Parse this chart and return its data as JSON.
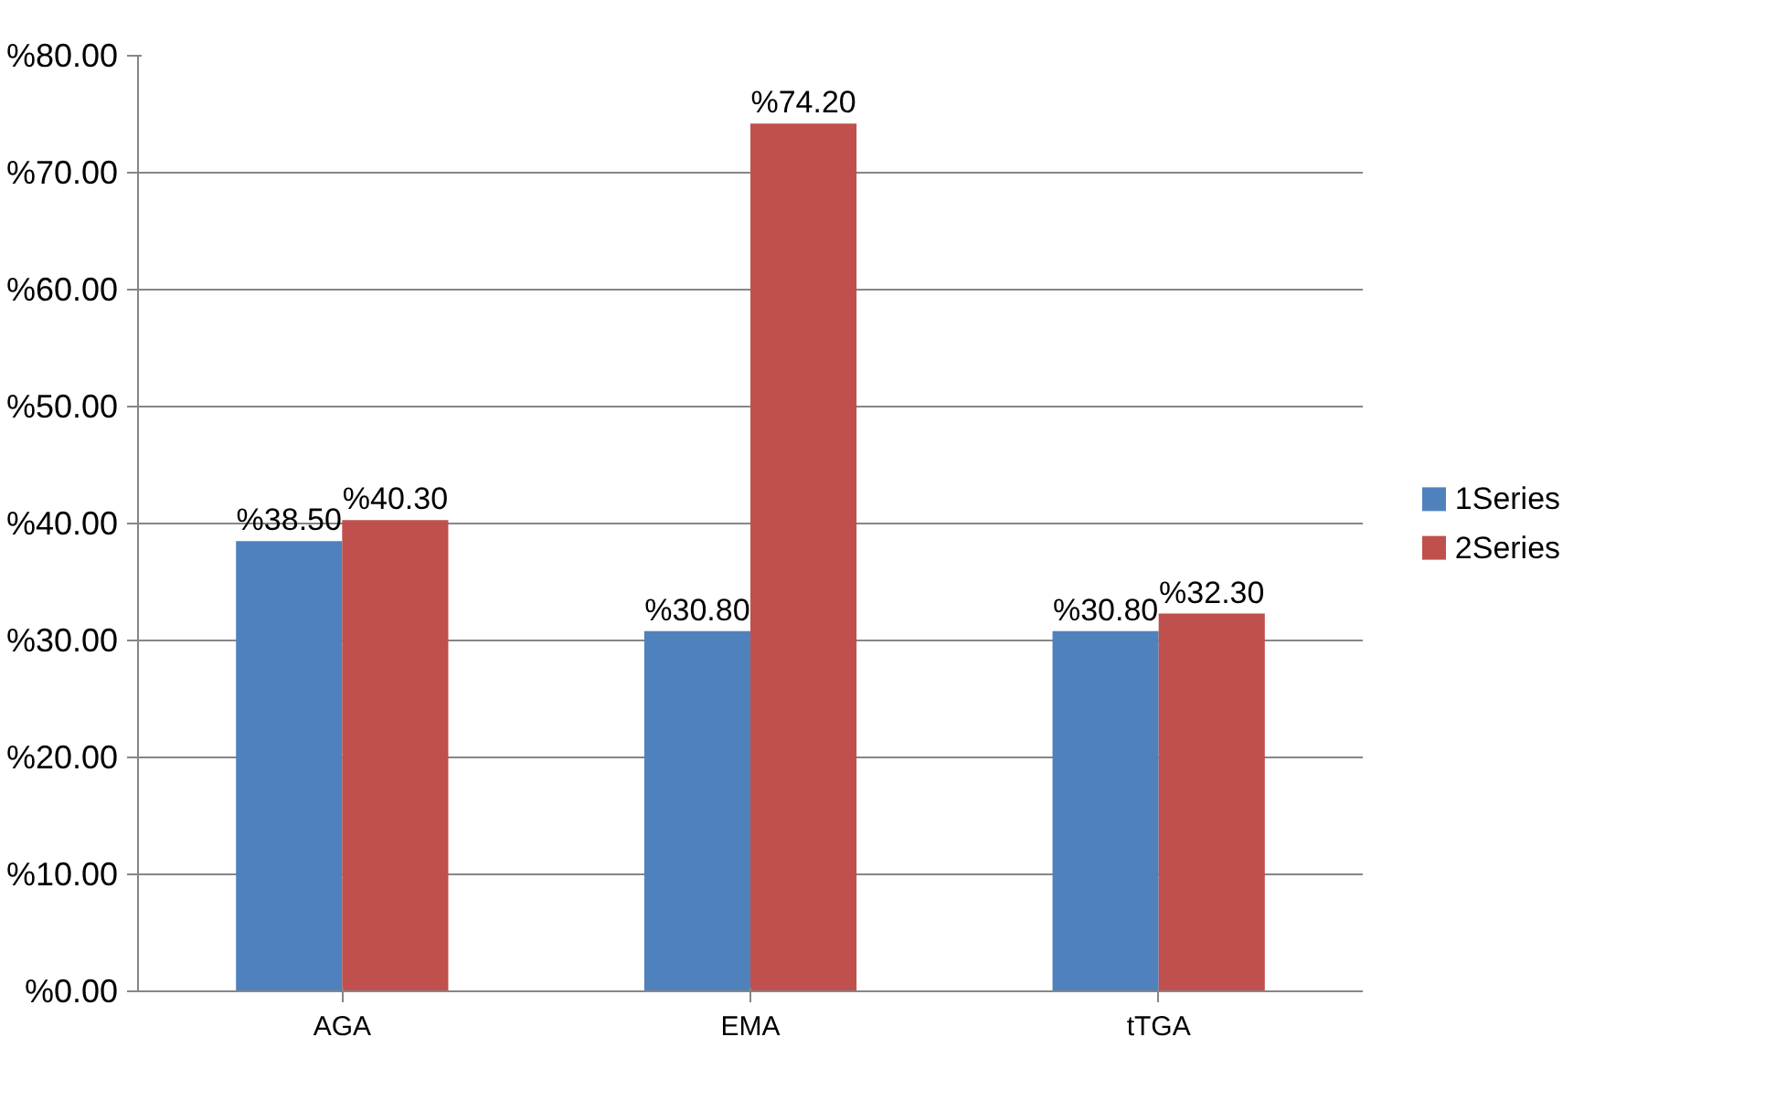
{
  "chart_data": {
    "type": "bar",
    "categories": [
      "AGA",
      "EMA",
      "tTGA"
    ],
    "series": [
      {
        "name": "1Series",
        "color": "#4f81bd",
        "values": [
          38.5,
          30.8,
          30.8
        ],
        "value_labels": [
          "%38.50",
          "%30.80",
          "%30.80"
        ]
      },
      {
        "name": "2Series",
        "color": "#c0504d",
        "values": [
          40.3,
          74.2,
          32.3
        ],
        "value_labels": [
          "%40.30",
          "%74.20",
          "%32.30"
        ]
      }
    ],
    "ylim": [
      0,
      80
    ],
    "yticks": [
      {
        "value": 0,
        "label": "%0.00"
      },
      {
        "value": 10,
        "label": "%10.00"
      },
      {
        "value": 20,
        "label": "%20.00"
      },
      {
        "value": 30,
        "label": "%30.00"
      },
      {
        "value": 40,
        "label": "%40.00"
      },
      {
        "value": 50,
        "label": "%50.00"
      },
      {
        "value": 60,
        "label": "%60.00"
      },
      {
        "value": 70,
        "label": "%70.00"
      },
      {
        "value": 80,
        "label": "%80.00"
      }
    ],
    "grid": "y",
    "legend": "right"
  }
}
